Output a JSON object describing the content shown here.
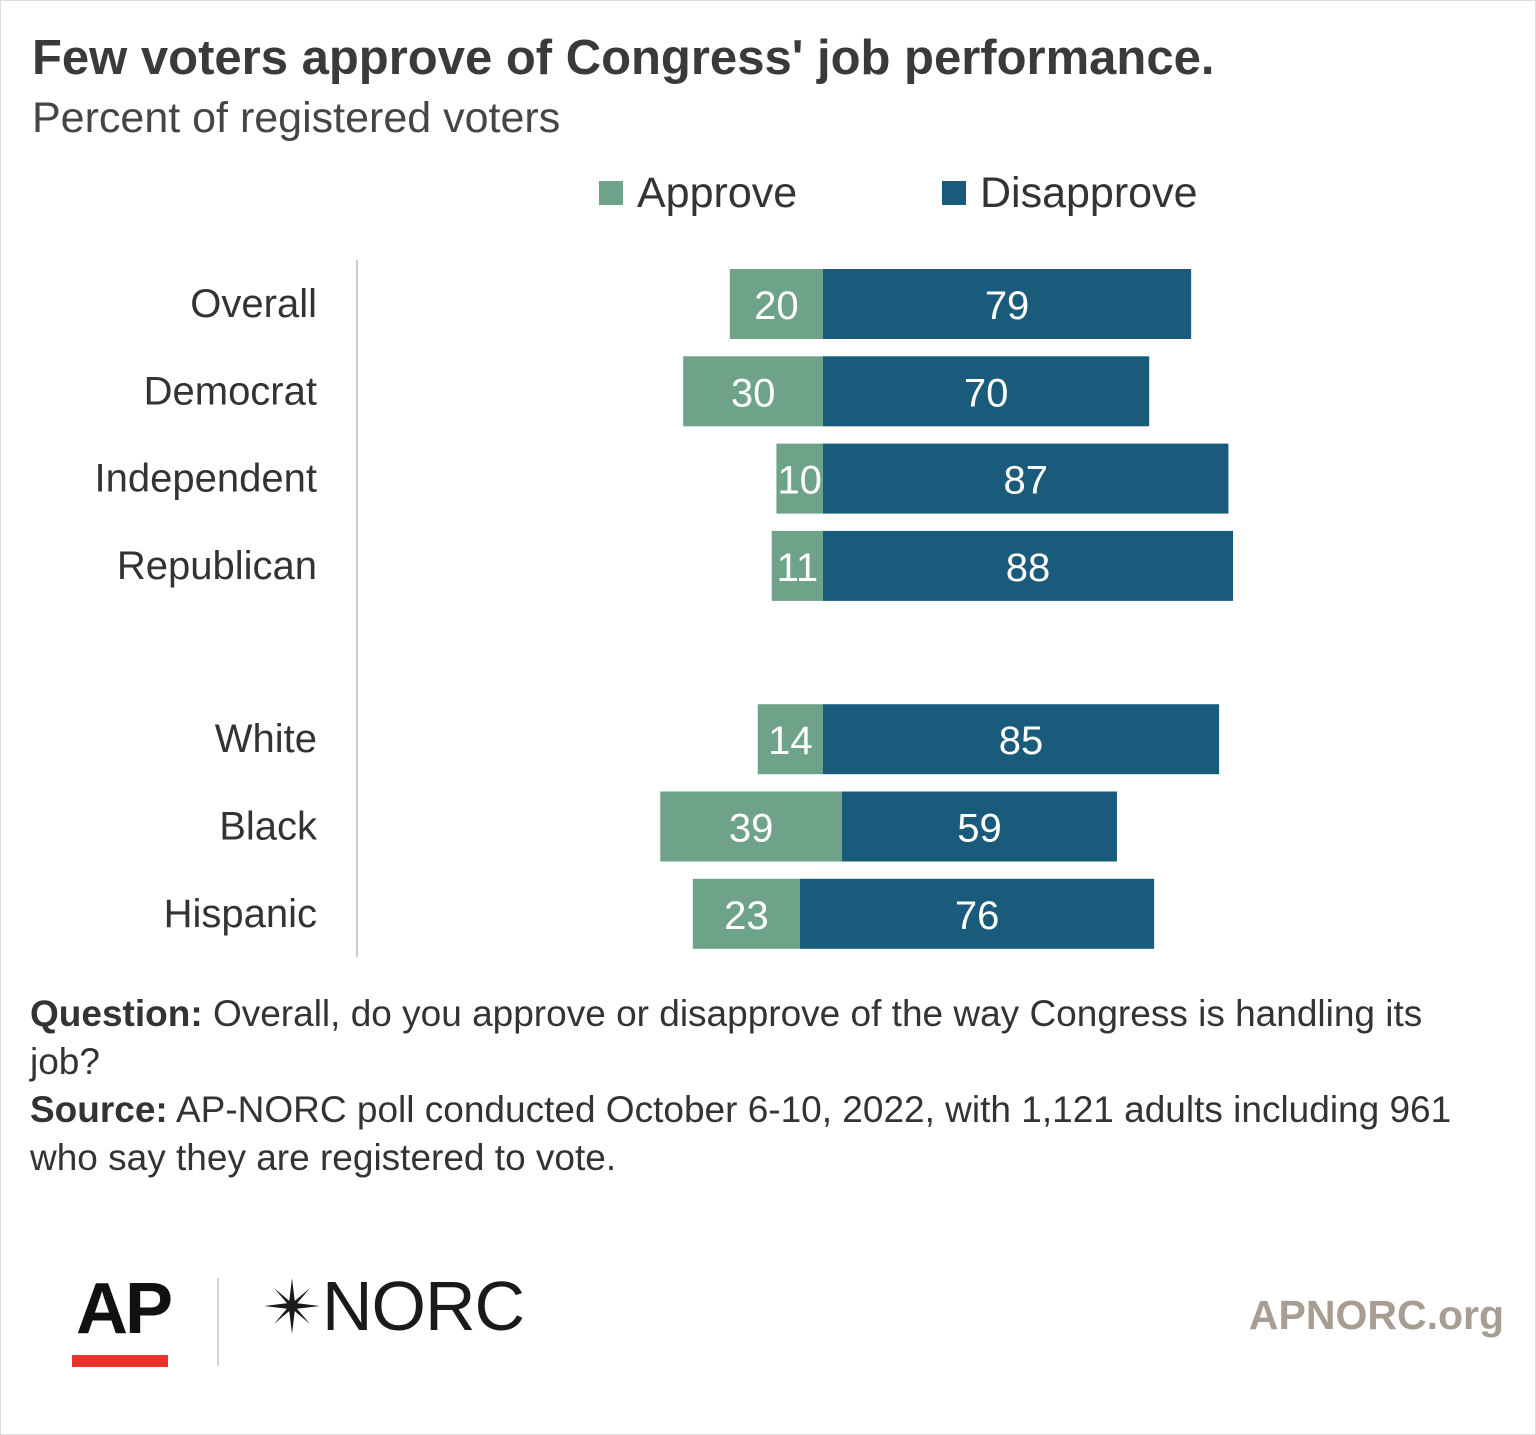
{
  "title": "Few voters approve of Congress' job performance.",
  "subtitle": "Percent of registered voters",
  "colors": {
    "approve": "#6fa389",
    "disapprove": "#1a5a7a",
    "axis": "#cccccc",
    "ap_red": "#e8322b",
    "site_text": "#a79d91"
  },
  "chart_data": {
    "type": "bar",
    "orientation": "horizontal",
    "stacked": "diverging",
    "categories": [
      "Overall",
      "Democrat",
      "Independent",
      "Republican",
      "White",
      "Black",
      "Hispanic"
    ],
    "groups": [
      [
        "Overall",
        "Democrat",
        "Independent",
        "Republican"
      ],
      [
        "White",
        "Black",
        "Hispanic"
      ]
    ],
    "series": [
      {
        "name": "Approve",
        "values": [
          20,
          30,
          10,
          11,
          14,
          39,
          23
        ]
      },
      {
        "name": "Disapprove",
        "values": [
          79,
          70,
          87,
          88,
          85,
          59,
          76
        ]
      }
    ],
    "legend_position": "top",
    "data_labels": true,
    "grid": false
  },
  "notes": {
    "question_label": "Question:",
    "question_text": " Overall, do you approve or disapprove of the way Congress is handling its job?",
    "source_label": "Source:",
    "source_text": " AP-NORC poll conducted October 6-10, 2022, with 1,121 adults including 961 who say they are registered to vote."
  },
  "footer": {
    "ap_logo": "AP",
    "norc_logo": "NORC",
    "site": "APNORC.org"
  }
}
